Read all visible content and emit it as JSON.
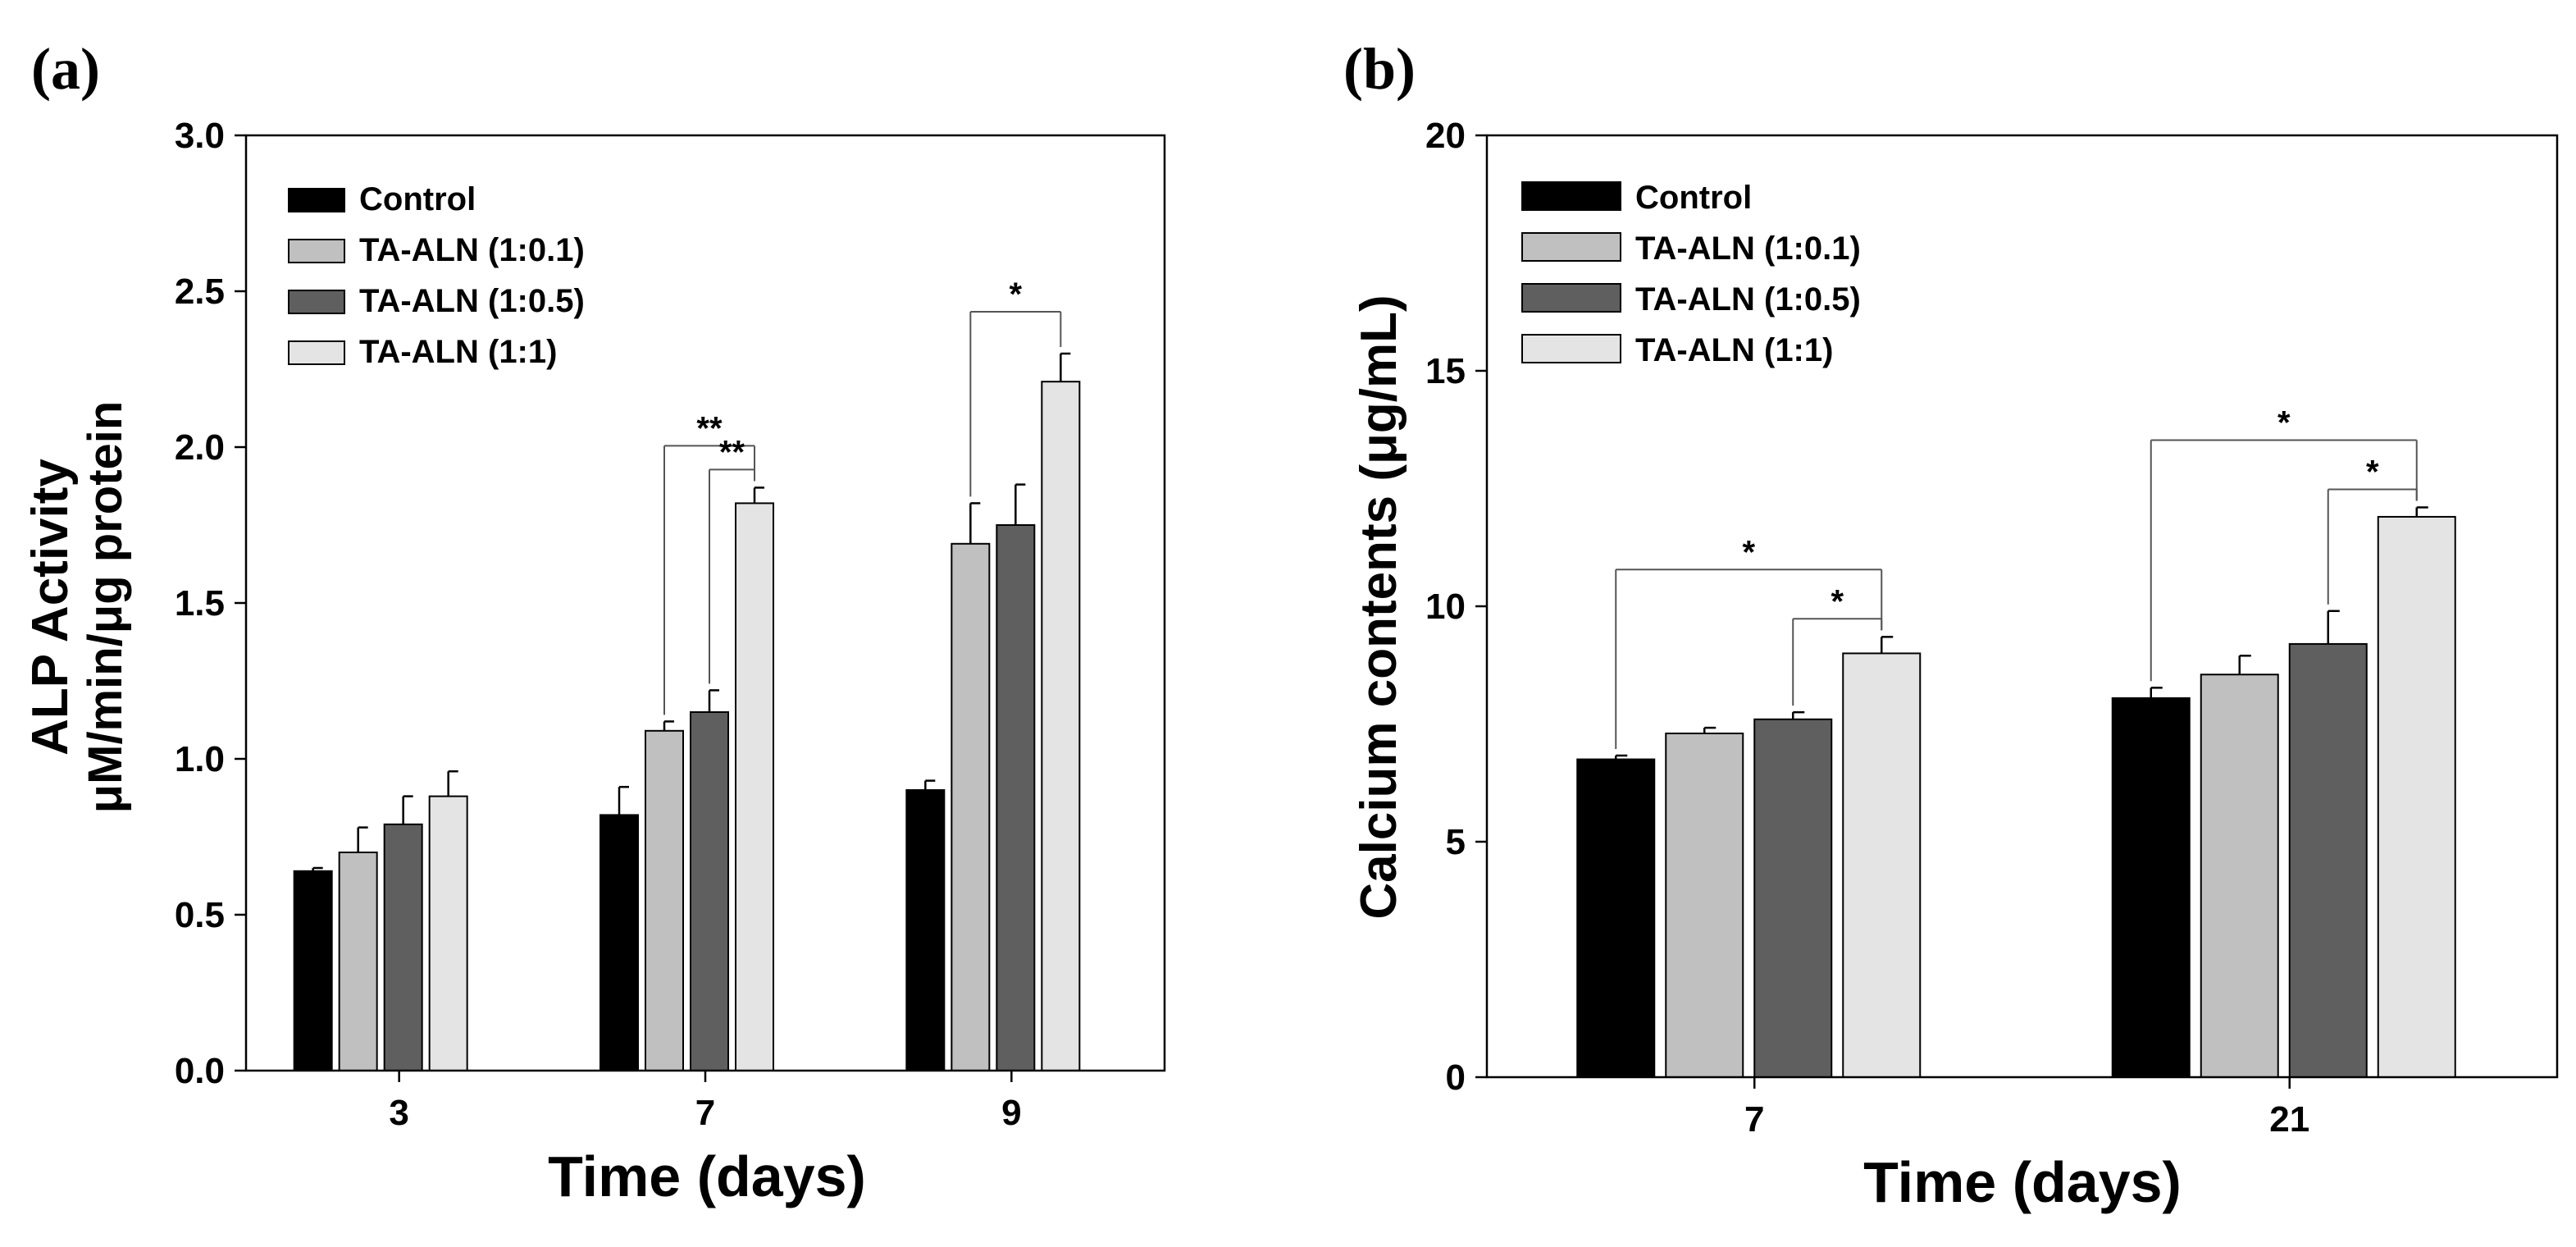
{
  "chart_data": [
    {
      "type": "bar",
      "panel_label": "(a)",
      "title": "",
      "xlabel": "Time (days)",
      "ylabel_line1": "ALP Activity",
      "ylabel_line2": "μM/min/μg protein",
      "categories": [
        "3",
        "7",
        "9"
      ],
      "ylim": [
        0,
        3.0
      ],
      "yticks": [
        "0.0",
        "0.5",
        "1.0",
        "1.5",
        "2.0",
        "2.5",
        "3.0"
      ],
      "grid": false,
      "legend_position": "top-left",
      "series": [
        {
          "name": "Control",
          "color": "#000000",
          "values": [
            0.64,
            0.82,
            0.9
          ],
          "errors": [
            0.01,
            0.09,
            0.03
          ]
        },
        {
          "name": "TA-ALN (1:0.1)",
          "color": "#c0c0c0",
          "values": [
            0.7,
            1.09,
            1.69
          ],
          "errors": [
            0.08,
            0.03,
            0.13
          ]
        },
        {
          "name": "TA-ALN (1:0.5)",
          "color": "#5f5f5f",
          "values": [
            0.79,
            1.15,
            1.75
          ],
          "errors": [
            0.09,
            0.07,
            0.13
          ]
        },
        {
          "name": "TA-ALN (1:1)",
          "color": "#e4e4e4",
          "values": [
            0.88,
            1.82,
            2.21
          ],
          "errors": [
            0.08,
            0.05,
            0.09
          ]
        }
      ],
      "significance": [
        {
          "category": 1,
          "from": 1,
          "to": 3,
          "label": "**"
        },
        {
          "category": 1,
          "from": 2,
          "to": 3,
          "label": "**"
        },
        {
          "category": 2,
          "from": 1,
          "to": 3,
          "label": "*"
        }
      ]
    },
    {
      "type": "bar",
      "panel_label": "(b)",
      "title": "",
      "xlabel": "Time (days)",
      "ylabel_line1": "Calcium contents (μg/mL)",
      "categories": [
        "7",
        "21"
      ],
      "ylim": [
        0,
        20
      ],
      "yticks": [
        "0",
        "5",
        "10",
        "15",
        "20"
      ],
      "grid": false,
      "legend_position": "top-left",
      "series": [
        {
          "name": "Control",
          "color": "#000000",
          "values": [
            6.75,
            8.05
          ],
          "errors": [
            0.08,
            0.22
          ]
        },
        {
          "name": "TA-ALN (1:0.1)",
          "color": "#c0c0c0",
          "values": [
            7.3,
            8.55
          ],
          "errors": [
            0.12,
            0.4
          ]
        },
        {
          "name": "TA-ALN (1:0.5)",
          "color": "#5f5f5f",
          "values": [
            7.6,
            9.2
          ],
          "errors": [
            0.15,
            0.7
          ]
        },
        {
          "name": "TA-ALN (1:1)",
          "color": "#e4e4e4",
          "values": [
            9.0,
            11.9
          ],
          "errors": [
            0.35,
            0.2
          ]
        }
      ],
      "significance": [
        {
          "category": 0,
          "from": 0,
          "to": 3,
          "label": "*"
        },
        {
          "category": 0,
          "from": 2,
          "to": 3,
          "label": "*"
        },
        {
          "category": 1,
          "from": 0,
          "to": 3,
          "label": "*"
        },
        {
          "category": 1,
          "from": 2,
          "to": 3,
          "label": "*"
        }
      ]
    }
  ]
}
